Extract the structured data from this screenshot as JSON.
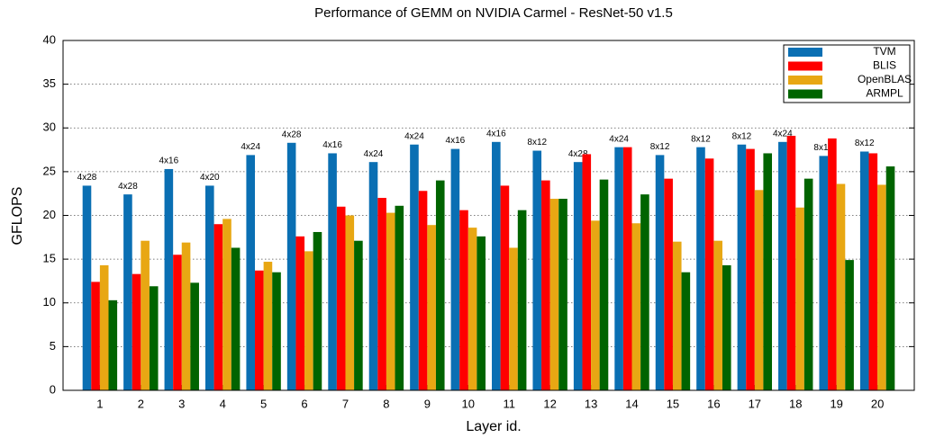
{
  "chart_data": {
    "type": "bar",
    "title": "Performance of GEMM on NVIDIA Carmel - ResNet-50 v1.5",
    "x_label": "Layer id.",
    "y_label": "GFLOPS",
    "categories": [
      "1",
      "2",
      "3",
      "4",
      "5",
      "6",
      "7",
      "8",
      "9",
      "10",
      "11",
      "12",
      "13",
      "14",
      "15",
      "16",
      "17",
      "18",
      "19",
      "20"
    ],
    "series": [
      {
        "name": "TVM",
        "color": "#0a6fb3",
        "values": [
          23.4,
          22.4,
          25.3,
          23.4,
          26.9,
          28.3,
          27.1,
          26.1,
          28.1,
          27.6,
          28.4,
          27.4,
          26.1,
          27.8,
          26.9,
          27.8,
          28.1,
          28.4,
          26.8,
          27.3
        ]
      },
      {
        "name": "BLIS",
        "color": "#ff0000",
        "values": [
          12.4,
          13.3,
          15.5,
          19.0,
          13.7,
          17.6,
          21.0,
          22.0,
          22.8,
          20.6,
          23.4,
          24.0,
          27.0,
          27.8,
          24.2,
          26.5,
          27.6,
          29.1,
          28.8,
          27.1
        ]
      },
      {
        "name": "OpenBLAS",
        "color": "#e8a713",
        "values": [
          14.3,
          17.1,
          16.9,
          19.6,
          14.7,
          15.9,
          20.0,
          20.3,
          18.9,
          18.6,
          16.3,
          21.9,
          19.4,
          19.1,
          17.0,
          17.1,
          22.9,
          20.9,
          23.6,
          23.5
        ]
      },
      {
        "name": "ARMPL",
        "color": "#006400",
        "values": [
          10.3,
          11.9,
          12.3,
          16.3,
          13.5,
          18.1,
          17.1,
          21.1,
          24.0,
          17.6,
          20.6,
          21.9,
          24.1,
          22.4,
          13.5,
          14.3,
          27.1,
          24.2,
          14.9,
          25.6
        ]
      }
    ],
    "annotations": [
      "4x28",
      "4x28",
      "4x16",
      "4x20",
      "4x24",
      "4x28",
      "4x16",
      "4x24",
      "4x24",
      "4x16",
      "4x16",
      "8x12",
      "4x28",
      "4x24",
      "8x12",
      "8x12",
      "8x12",
      "4x24",
      "8x12",
      "8x12"
    ],
    "ylim": [
      0,
      40
    ],
    "yticks": [
      0,
      5,
      10,
      15,
      20,
      25,
      30,
      35,
      40
    ],
    "grid": true,
    "legend": "upper right"
  }
}
